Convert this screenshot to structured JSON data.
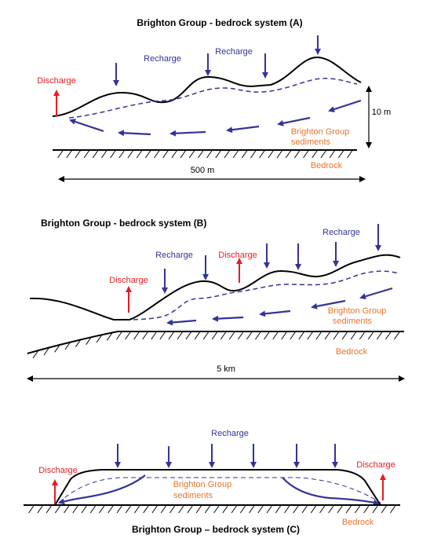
{
  "panels": [
    {
      "title": "Brighton Group - bedrock system (A)",
      "recharge_labels": [
        "Recharge",
        "Recharge"
      ],
      "discharge_labels": [
        "Discharge"
      ],
      "sediments_label": [
        "Brighton Group",
        "sediments"
      ],
      "bedrock_label": "Bedrock",
      "scale_labels": [
        "10 m",
        "500 m"
      ]
    },
    {
      "title": "Brighton Group - bedrock system (B)",
      "recharge_labels": [
        "Recharge",
        "Recharge"
      ],
      "discharge_labels": [
        "Discharge",
        "Discharge"
      ],
      "sediments_label": [
        "Brighton Group",
        "sediments"
      ],
      "bedrock_label": "Bedrock",
      "scale_labels": [
        "5 km"
      ]
    },
    {
      "title": "Brighton Group – bedrock system (C)",
      "recharge_labels": [
        "Recharge"
      ],
      "discharge_labels": [
        "Discharge",
        "Discharge"
      ],
      "sediments_label": [
        "Brighton Group",
        "sediments"
      ],
      "bedrock_label": "Bedrock"
    }
  ]
}
